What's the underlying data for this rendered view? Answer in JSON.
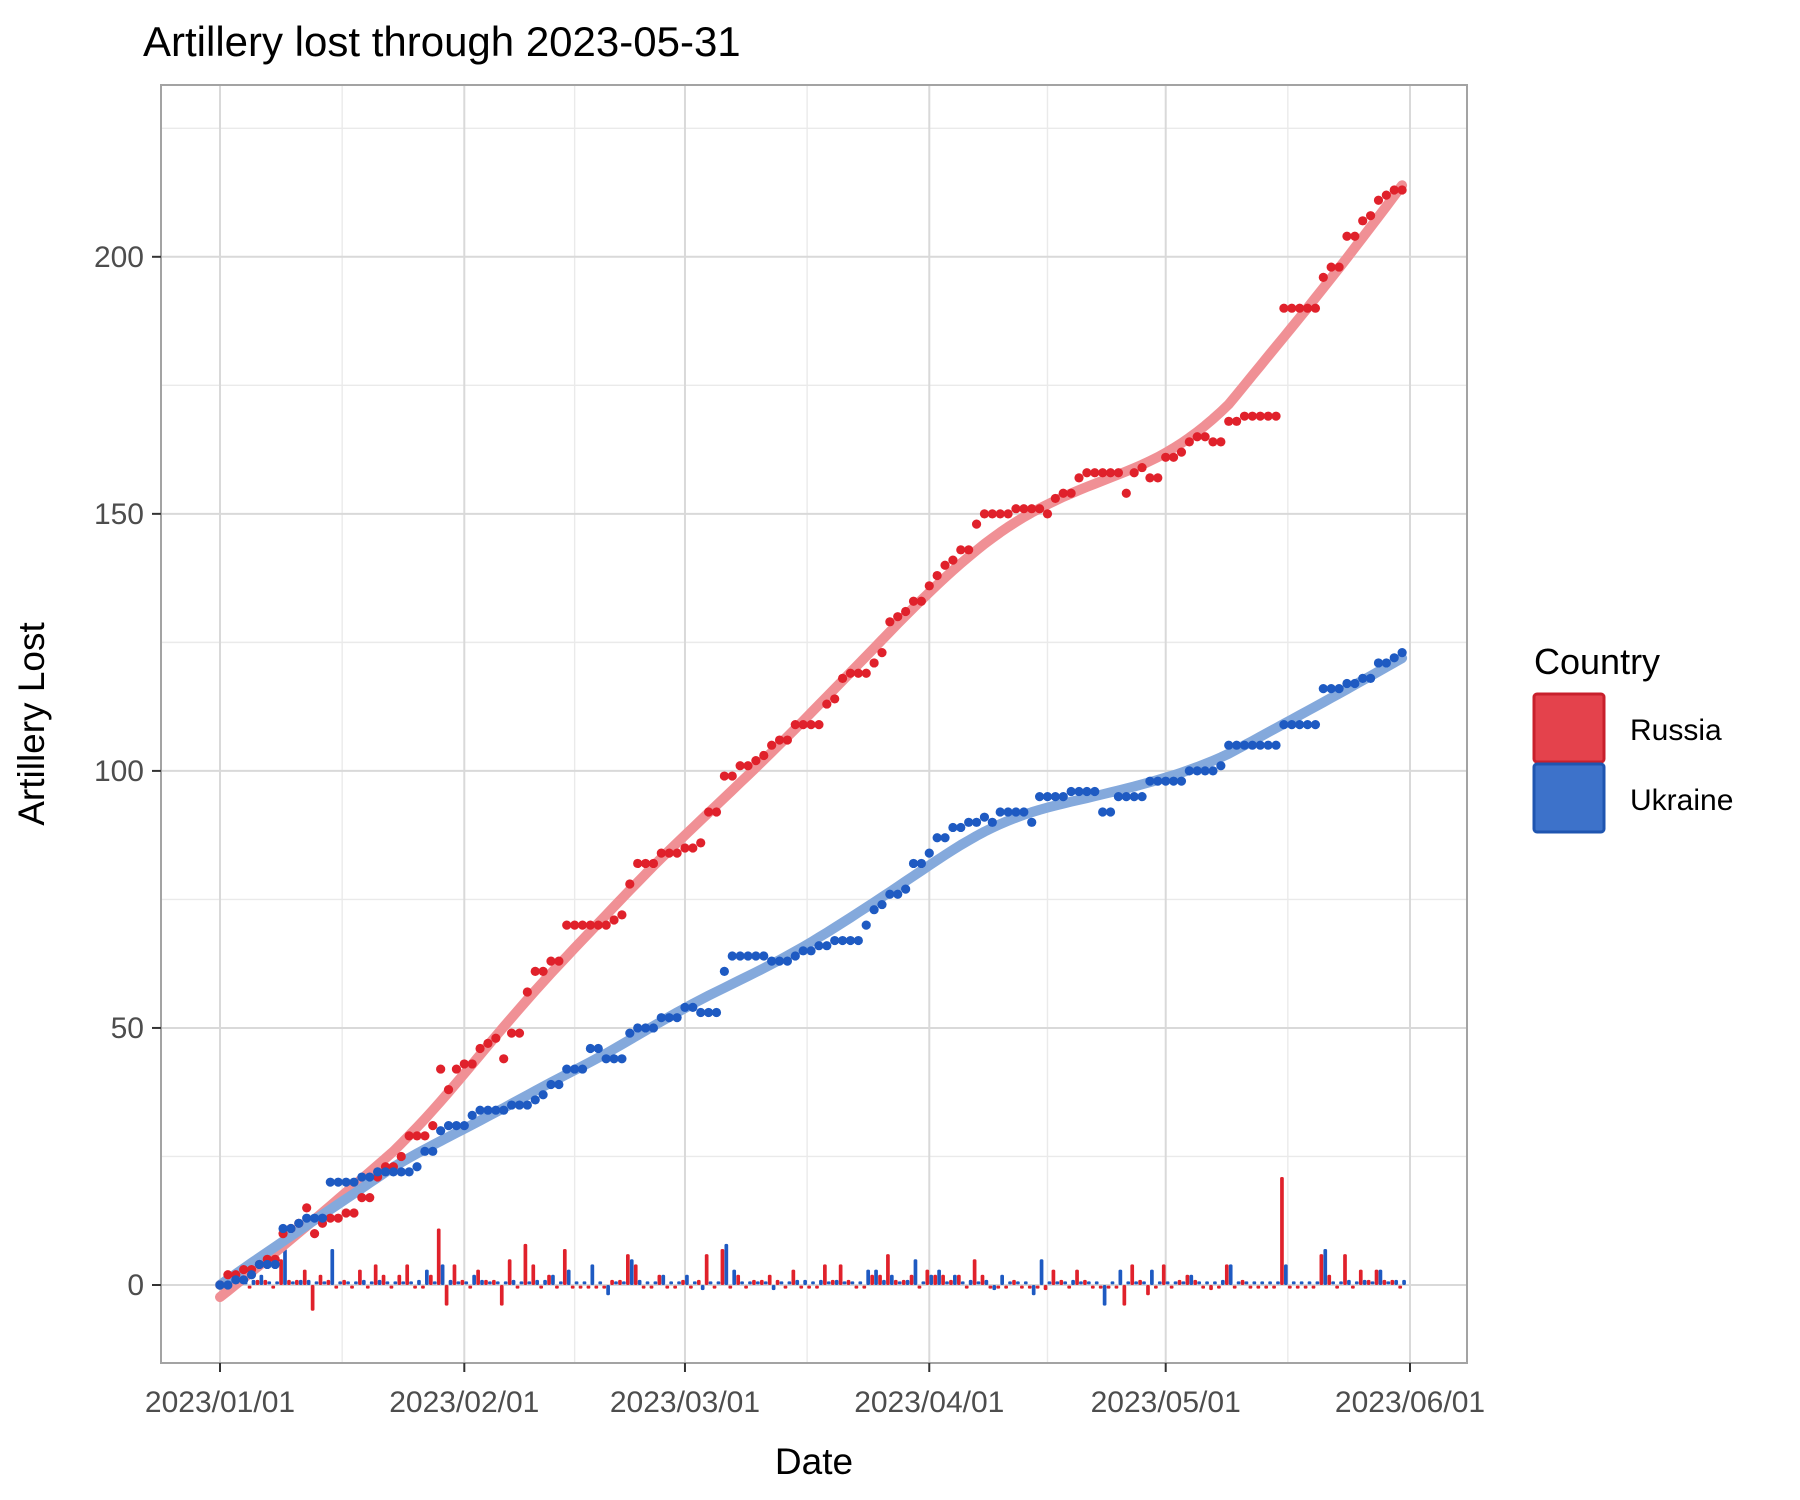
{
  "title": "Artillery lost through 2023-05-31",
  "axes": {
    "x": {
      "label": "Date",
      "tick_labels": [
        "2023/01/01",
        "2023/02/01",
        "2023/03/01",
        "2023/04/01",
        "2023/05/01",
        "2023/06/01"
      ],
      "tick_day_offsets": [
        0,
        31,
        59,
        90,
        120,
        151
      ],
      "minor_day_offsets": [
        15.5,
        45,
        74.5,
        105,
        135.5
      ]
    },
    "y": {
      "label": "Artillery Lost",
      "tick_labels": [
        "0",
        "50",
        "100",
        "150",
        "200"
      ],
      "tick_values": [
        0,
        50,
        100,
        150,
        200
      ],
      "minor_values": [
        25,
        75,
        125,
        175,
        225
      ],
      "range": [
        -15.5,
        233.5
      ]
    }
  },
  "legend": {
    "title": "Country",
    "entries": [
      {
        "label": "Russia",
        "fill": "#e4424c",
        "border": "#c8202c"
      },
      {
        "label": "Ukraine",
        "fill": "#3d72ca",
        "border": "#1f55b0"
      }
    ]
  },
  "colors": {
    "russia_point": "#e0212b",
    "russia_smooth": "#f09095",
    "ukraine_point": "#1e5ac2",
    "ukraine_smooth": "#84a9dc",
    "grid_major": "#d9d9d9",
    "grid_minor": "#eaeaea",
    "panel_border": "#a3a3a3",
    "tick_mark": "#333333",
    "tick_text": "#4d4d4d"
  },
  "chart_data": {
    "type": "scatter+smooth+bar",
    "title": "Artillery lost through 2023-05-31",
    "xlabel": "Date",
    "ylabel": "Artillery Lost",
    "x_start_date": "2023-01-01",
    "x_end_date": "2023-05-31",
    "n_days": 151,
    "ylim": [
      -15.5,
      233.5
    ],
    "grid": true,
    "legend_position": "right",
    "smoothing": "loess, span 0.3, local linear",
    "series": [
      {
        "name": "Russia",
        "kind": "cumulative",
        "cumulative": [
          0,
          2,
          2,
          3,
          3,
          4,
          5,
          5,
          10,
          11,
          12,
          15,
          10,
          12,
          13,
          13,
          14,
          14,
          17,
          17,
          21,
          23,
          23,
          25,
          29,
          29,
          29,
          31,
          42,
          38,
          42,
          43,
          43,
          46,
          47,
          48,
          44,
          49,
          49,
          57,
          61,
          61,
          63,
          63,
          70,
          70,
          70,
          70,
          70,
          70,
          71,
          72,
          78,
          82,
          82,
          82,
          84,
          84,
          84,
          85,
          85,
          86,
          92,
          92,
          99,
          99,
          101,
          101,
          102,
          103,
          105,
          106,
          106,
          109,
          109,
          109,
          109,
          113,
          114,
          118,
          119,
          119,
          119,
          121,
          123,
          129,
          130,
          131,
          133,
          133,
          136,
          138,
          140,
          141,
          143,
          143,
          148,
          150,
          150,
          150,
          150,
          151,
          151,
          151,
          151,
          150,
          153,
          154,
          154,
          157,
          158,
          158,
          158,
          158,
          158,
          154,
          158,
          159,
          157,
          157,
          161,
          161,
          162,
          164,
          165,
          165,
          164,
          164,
          168,
          168,
          169,
          169,
          169,
          169,
          169,
          190,
          190,
          190,
          190,
          190,
          196,
          198,
          198,
          204,
          204,
          207,
          208,
          211,
          212,
          213,
          213
        ]
      },
      {
        "name": "Ukraine",
        "kind": "cumulative",
        "cumulative": [
          0,
          0,
          1,
          1,
          2,
          4,
          4,
          4,
          11,
          11,
          12,
          13,
          13,
          13,
          20,
          20,
          20,
          20,
          21,
          21,
          22,
          22,
          22,
          22,
          22,
          23,
          26,
          26,
          30,
          31,
          31,
          31,
          33,
          34,
          34,
          34,
          34,
          35,
          35,
          35,
          36,
          37,
          39,
          39,
          42,
          42,
          42,
          46,
          46,
          44,
          44,
          44,
          49,
          50,
          50,
          50,
          52,
          52,
          52,
          54,
          54,
          53,
          53,
          53,
          61,
          64,
          64,
          64,
          64,
          64,
          63,
          63,
          63,
          64,
          65,
          65,
          66,
          66,
          67,
          67,
          67,
          67,
          70,
          73,
          74,
          76,
          76,
          77,
          82,
          82,
          84,
          87,
          87,
          89,
          89,
          90,
          90,
          91,
          90,
          92,
          92,
          92,
          92,
          90,
          95,
          95,
          95,
          95,
          96,
          96,
          96,
          96,
          92,
          92,
          95,
          95,
          95,
          95,
          98,
          98,
          98,
          98,
          98,
          100,
          100,
          100,
          100,
          101,
          105,
          105,
          105,
          105,
          105,
          105,
          105,
          109,
          109,
          109,
          109,
          109,
          116,
          116,
          116,
          117,
          117,
          118,
          118,
          121,
          121,
          122,
          123
        ]
      }
    ],
    "bars": [
      {
        "name": "Russia daily change",
        "values": [
          0,
          2,
          0,
          1,
          0,
          1,
          1,
          0,
          5,
          1,
          1,
          3,
          -5,
          2,
          1,
          0,
          1,
          0,
          3,
          0,
          4,
          2,
          0,
          2,
          4,
          0,
          0,
          2,
          11,
          -4,
          4,
          1,
          0,
          3,
          1,
          1,
          -4,
          5,
          0,
          8,
          4,
          0,
          2,
          0,
          7,
          0,
          0,
          0,
          0,
          0,
          1,
          1,
          6,
          4,
          0,
          0,
          2,
          0,
          0,
          1,
          0,
          1,
          6,
          0,
          7,
          0,
          2,
          0,
          1,
          1,
          2,
          1,
          0,
          3,
          0,
          0,
          0,
          4,
          1,
          4,
          1,
          0,
          0,
          2,
          2,
          6,
          1,
          1,
          2,
          0,
          3,
          2,
          2,
          1,
          2,
          0,
          5,
          2,
          0,
          0,
          0,
          1,
          0,
          0,
          0,
          -1,
          3,
          1,
          0,
          3,
          1,
          0,
          0,
          0,
          0,
          -4,
          4,
          1,
          -2,
          0,
          4,
          0,
          1,
          2,
          1,
          0,
          -1,
          0,
          4,
          0,
          1,
          0,
          0,
          0,
          0,
          21,
          0,
          0,
          0,
          0,
          6,
          2,
          0,
          6,
          0,
          3,
          1,
          3,
          1,
          1,
          0
        ]
      },
      {
        "name": "Ukraine daily change",
        "values": [
          0,
          0,
          1,
          0,
          1,
          2,
          0,
          0,
          7,
          0,
          1,
          1,
          0,
          0,
          7,
          0,
          0,
          0,
          1,
          0,
          1,
          0,
          0,
          0,
          0,
          1,
          3,
          0,
          4,
          1,
          0,
          0,
          2,
          1,
          0,
          0,
          0,
          1,
          0,
          0,
          1,
          1,
          2,
          0,
          3,
          0,
          0,
          4,
          0,
          -2,
          0,
          0,
          5,
          1,
          0,
          0,
          2,
          0,
          0,
          2,
          0,
          -1,
          0,
          0,
          8,
          3,
          0,
          0,
          0,
          0,
          -1,
          0,
          0,
          1,
          1,
          0,
          1,
          0,
          1,
          0,
          0,
          0,
          3,
          3,
          1,
          2,
          0,
          1,
          5,
          0,
          2,
          3,
          0,
          2,
          0,
          1,
          0,
          1,
          -1,
          2,
          0,
          0,
          0,
          -2,
          5,
          0,
          0,
          0,
          1,
          0,
          0,
          0,
          -4,
          0,
          3,
          0,
          0,
          0,
          3,
          0,
          0,
          0,
          0,
          2,
          0,
          0,
          0,
          1,
          4,
          0,
          0,
          0,
          0,
          0,
          0,
          4,
          0,
          0,
          0,
          0,
          7,
          0,
          0,
          1,
          0,
          1,
          0,
          3,
          0,
          1,
          1
        ]
      }
    ]
  }
}
